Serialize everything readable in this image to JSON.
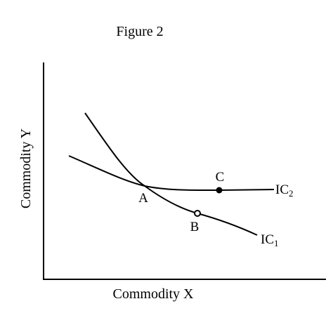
{
  "figure": {
    "title": "Figure 2",
    "x_axis_label": "Commodity X",
    "y_axis_label": "Commodity Y"
  },
  "curves": {
    "ic1": {
      "label": "IC",
      "subscript": "1"
    },
    "ic2": {
      "label": "IC",
      "subscript": "2"
    }
  },
  "points": {
    "a": {
      "label": "A"
    },
    "b": {
      "label": "B"
    },
    "c": {
      "label": "C"
    }
  },
  "colors": {
    "ink": "#000000",
    "background": "#ffffff"
  }
}
